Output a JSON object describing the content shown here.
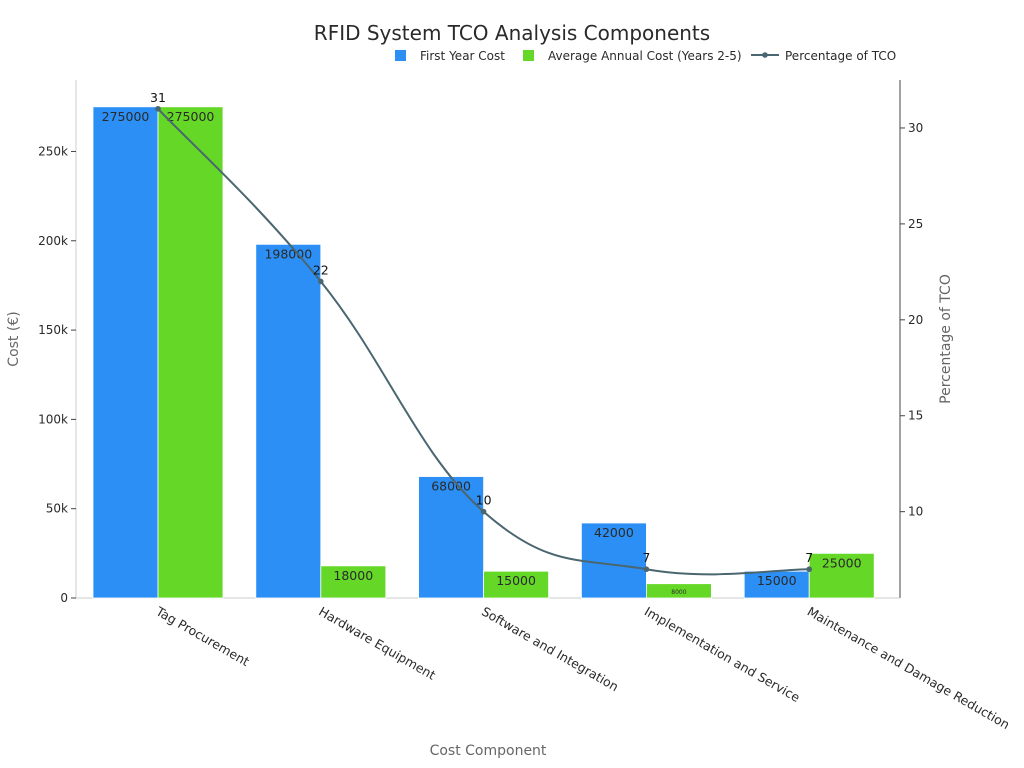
{
  "chart_data": {
    "type": "bar",
    "title": "RFID System TCO Analysis Components",
    "xlabel": "Cost Component",
    "ylabel": "Cost (€)",
    "y2label": "Percentage of TCO",
    "categories": [
      "Tag Procurement",
      "Hardware Equipment",
      "Software and Integration",
      "Implementation and Service",
      "Maintenance and Damage Reduction"
    ],
    "series": [
      {
        "name": "First Year Cost",
        "kind": "bar",
        "axis": "left",
        "color": "#2b8ff6",
        "values": [
          275000,
          198000,
          68000,
          42000,
          15000
        ]
      },
      {
        "name": "Average Annual Cost (Years 2-5)",
        "kind": "bar",
        "axis": "left",
        "color": "#65d827",
        "values": [
          275000,
          18000,
          15000,
          8000,
          25000
        ]
      },
      {
        "name": "Percentage of TCO",
        "kind": "line",
        "axis": "right",
        "color": "#4a6670",
        "values": [
          31,
          22,
          10,
          7,
          7
        ]
      }
    ],
    "ylim": [
      0,
      290000
    ],
    "y2lim": [
      5.5,
      32.5
    ],
    "yticks": [
      0,
      50000,
      100000,
      150000,
      200000,
      250000
    ],
    "ytick_labels": [
      "0",
      "50k",
      "100k",
      "150k",
      "200k",
      "250k"
    ],
    "y2ticks": [
      10,
      15,
      20,
      25,
      30
    ],
    "y2tick_labels": [
      "10",
      "15",
      "20",
      "25",
      "30"
    ],
    "legend_position": "top-right",
    "grid": false
  }
}
